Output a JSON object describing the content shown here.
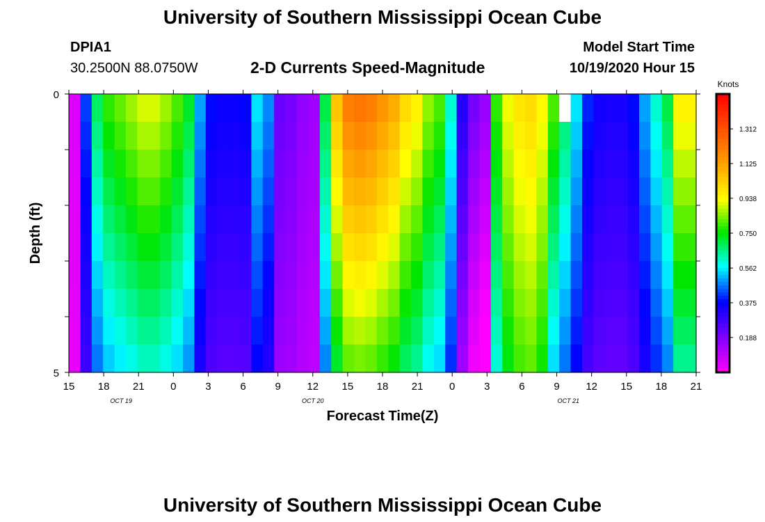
{
  "header": {
    "title": "University of Southern Mississippi Ocean Cube",
    "station_id": "DPIA1",
    "station_coords": "30.2500N 88.0750W",
    "chart_subtitle": "2-D Currents Speed-Magnitude",
    "model_start_label": "Model Start Time",
    "model_start_value": "10/19/2020 Hour 15",
    "footer_title": "University of Southern Mississippi Ocean Cube"
  },
  "chart_data": {
    "type": "heatmap",
    "title": "2-D Currents Speed-Magnitude",
    "xlabel": "Forecast Time(Z)",
    "ylabel": "Depth (ft)",
    "x_ticks": [
      "15",
      "18",
      "21",
      "0",
      "3",
      "6",
      "9",
      "12",
      "15",
      "18",
      "21",
      "0",
      "3",
      "6",
      "9",
      "12",
      "15",
      "18",
      "21"
    ],
    "date_labels": [
      {
        "text": "OCT 19",
        "hour_offset": 4.5
      },
      {
        "text": "OCT 20",
        "hour_offset": 21
      },
      {
        "text": "OCT 21",
        "hour_offset": 43
      }
    ],
    "y_ticks": [
      "0",
      "5"
    ],
    "y_range": [
      0,
      5
    ],
    "x_range_hours": [
      0,
      54
    ],
    "colorbar_label": "Knots",
    "colorbar_ticks": [
      "1.312",
      "1.125",
      "0.938",
      "0.750",
      "0.562",
      "0.375",
      "0.188"
    ],
    "colorbar_tick_values": [
      1.312,
      1.125,
      0.938,
      0.75,
      0.562,
      0.375,
      0.188
    ],
    "value_range": [
      0,
      1.5
    ],
    "missing_cell": {
      "hour_index": 43,
      "depth_row": 0
    },
    "depth_levels": 10,
    "speed_rows_knots": [
      [
        0.05,
        0.42,
        0.68,
        0.78,
        0.82,
        0.86,
        0.9,
        0.9,
        0.86,
        0.8,
        0.72,
        0.5,
        0.38,
        0.36,
        0.36,
        0.37,
        0.55,
        0.48,
        0.22,
        0.2,
        0.16,
        0.14,
        0.7,
        1.05,
        1.2,
        1.22,
        1.2,
        1.15,
        1.1,
        1.0,
        0.95,
        0.85,
        0.8,
        0.6,
        0.32,
        0.2,
        0.15,
        0.78,
        0.92,
        0.98,
        1.0,
        0.94,
        0.8,
        0.68,
        0.55,
        0.4,
        0.35,
        0.34,
        0.34,
        0.38,
        0.5,
        0.6,
        0.7,
        0.95,
        0.95
      ],
      [
        0.05,
        0.42,
        0.68,
        0.78,
        0.82,
        0.86,
        0.9,
        0.9,
        0.86,
        0.8,
        0.72,
        0.5,
        0.38,
        0.36,
        0.36,
        0.37,
        0.55,
        0.48,
        0.22,
        0.2,
        0.16,
        0.14,
        0.7,
        1.05,
        1.2,
        1.22,
        1.2,
        1.15,
        1.1,
        1.0,
        0.95,
        0.85,
        0.8,
        0.6,
        0.32,
        0.2,
        0.15,
        0.78,
        0.92,
        0.98,
        1.0,
        0.94,
        0.8,
        0.68,
        0.55,
        0.4,
        0.35,
        0.34,
        0.34,
        0.38,
        0.5,
        0.6,
        0.7,
        0.95,
        0.95
      ]
    ],
    "profile_note": "10 depth rows × 55 hourly columns; rows 1–9 follow the same hourly pattern, weakening with depth"
  }
}
